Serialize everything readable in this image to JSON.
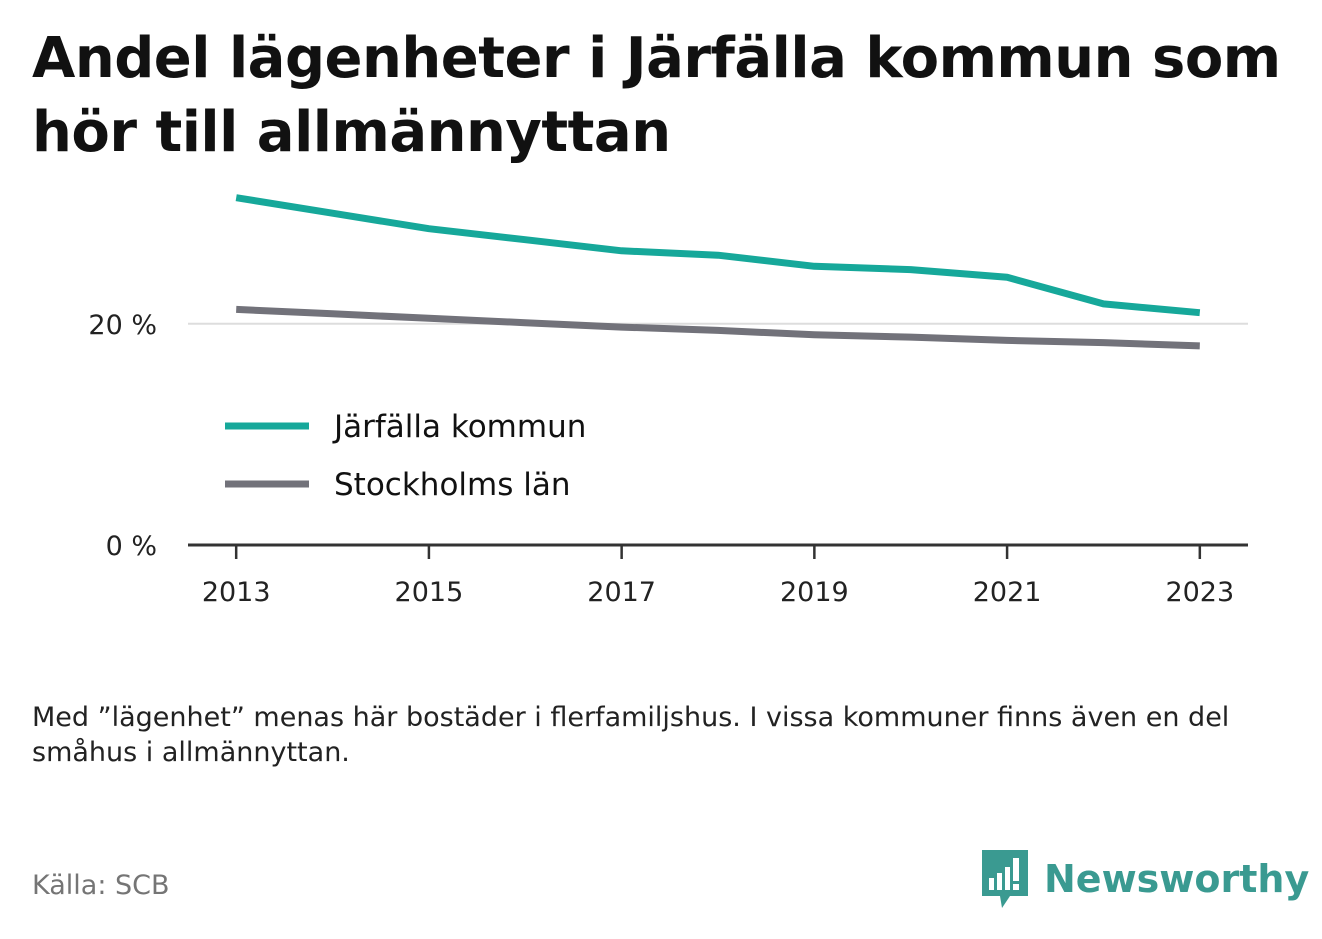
{
  "title": "Andel lägenheter i Järfälla kommun som hör till allmännyttan",
  "note": "Med ”lägenhet” menas här bostäder i flerfamiljshus. I vissa kommuner finns även en del småhus i allmännyttan.",
  "source": "Källa: SCB",
  "brand": {
    "name": "Newsworthy",
    "logo_icon": "bar-chart-speech-bubble-icon",
    "color": "#3a9a91"
  },
  "chart_data": {
    "type": "line",
    "title": "Andel lägenheter i Järfälla kommun som hör till allmännyttan",
    "xlabel": "",
    "ylabel": "",
    "x": [
      2013,
      2014,
      2015,
      2016,
      2017,
      2018,
      2019,
      2020,
      2021,
      2022,
      2023
    ],
    "xticks": [
      "2013",
      "2015",
      "2017",
      "2019",
      "2021",
      "2023"
    ],
    "xlim": [
      2012.5,
      2023.5
    ],
    "ylim": [
      0,
      33
    ],
    "yticks": [
      {
        "value": 0,
        "label": "0 %"
      },
      {
        "value": 20,
        "label": "20 %"
      }
    ],
    "grid": true,
    "legend_position": "inside-left",
    "series": [
      {
        "name": "Järfälla kommun",
        "color": "#16a89a",
        "values": [
          31.4,
          30.0,
          28.6,
          27.6,
          26.6,
          26.2,
          25.2,
          24.9,
          24.2,
          21.8,
          21.0
        ]
      },
      {
        "name": "Stockholms län",
        "color": "#72727a",
        "values": [
          21.3,
          20.9,
          20.5,
          20.1,
          19.7,
          19.4,
          19.0,
          18.8,
          18.5,
          18.3,
          18.0
        ]
      }
    ]
  }
}
